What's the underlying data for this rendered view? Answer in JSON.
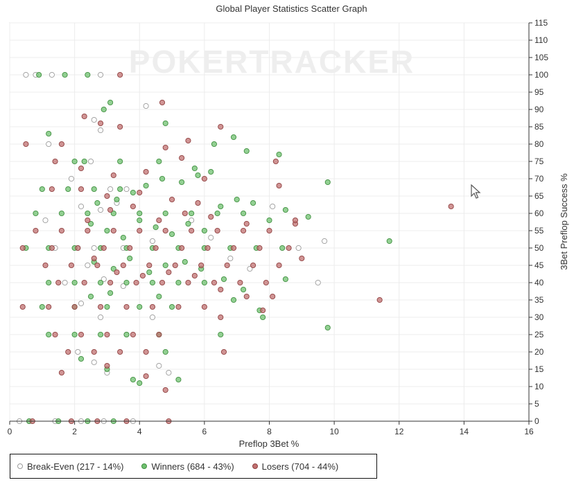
{
  "chart_data": {
    "type": "scatter",
    "title": "Global Player Statistics Scatter Graph",
    "xlabel": "Preflop 3Bet %",
    "ylabel": "3Bet Preflop Success %",
    "xlim": [
      0,
      16
    ],
    "ylim": [
      0,
      115
    ],
    "xticks": [
      "0",
      "2",
      "4",
      "6",
      "8",
      "10",
      "12",
      "14",
      "16"
    ],
    "yticks": [
      "0",
      "5",
      "10",
      "15",
      "20",
      "25",
      "30",
      "35",
      "40",
      "45",
      "50",
      "55",
      "60",
      "65",
      "70",
      "75",
      "80",
      "85",
      "90",
      "95",
      "100",
      "105",
      "110",
      "115"
    ],
    "grid": true,
    "legend_placement": "bottom-left",
    "series": [
      {
        "name": "Break-Even (217 - 14%)",
        "fill": "#ffffff",
        "stroke": "#9a9a9a",
        "points": [
          [
            0.5,
            100
          ],
          [
            0.8,
            100
          ],
          [
            1.3,
            100
          ],
          [
            2.8,
            100
          ],
          [
            1.2,
            80
          ],
          [
            2.6,
            87
          ],
          [
            2.8,
            84
          ],
          [
            4.2,
            91
          ],
          [
            1.9,
            70
          ],
          [
            2.5,
            75
          ],
          [
            3.1,
            67
          ],
          [
            3.6,
            67
          ],
          [
            1.1,
            58
          ],
          [
            2.2,
            62
          ],
          [
            2.8,
            61
          ],
          [
            3.3,
            63
          ],
          [
            1.4,
            50
          ],
          [
            2.1,
            50
          ],
          [
            2.6,
            50
          ],
          [
            3.5,
            50
          ],
          [
            4.4,
            52
          ],
          [
            5.6,
            58
          ],
          [
            6.2,
            53
          ],
          [
            6.8,
            47
          ],
          [
            7.4,
            44
          ],
          [
            8.1,
            62
          ],
          [
            8.9,
            50
          ],
          [
            9.5,
            40
          ],
          [
            9.7,
            52
          ],
          [
            2.4,
            45
          ],
          [
            2.9,
            41
          ],
          [
            3.5,
            39
          ],
          [
            1.7,
            40
          ],
          [
            2.2,
            34
          ],
          [
            2.8,
            30
          ],
          [
            3.6,
            25
          ],
          [
            2.1,
            20
          ],
          [
            2.6,
            17
          ],
          [
            3.0,
            14
          ],
          [
            4.4,
            30
          ],
          [
            4.6,
            16
          ],
          [
            4.9,
            14
          ],
          [
            0.6,
            0
          ],
          [
            1.4,
            0
          ],
          [
            2.2,
            0
          ],
          [
            2.9,
            0
          ],
          [
            3.8,
            0
          ],
          [
            0.3,
            0
          ]
        ]
      },
      {
        "name": "Winners (684 - 43%)",
        "fill": "#6fc06f",
        "stroke": "#3f8f3f",
        "points": [
          [
            0.9,
            100
          ],
          [
            1.7,
            100
          ],
          [
            2.4,
            100
          ],
          [
            3.1,
            92
          ],
          [
            2.9,
            90
          ],
          [
            4.8,
            86
          ],
          [
            6.3,
            80
          ],
          [
            6.9,
            82
          ],
          [
            7.3,
            78
          ],
          [
            8.3,
            77
          ],
          [
            9.8,
            69
          ],
          [
            11.7,
            52
          ],
          [
            9.8,
            27
          ],
          [
            7.8,
            30
          ],
          [
            6.5,
            25
          ],
          [
            4.0,
            11
          ],
          [
            5.2,
            12
          ],
          [
            4.8,
            20
          ],
          [
            1.2,
            83
          ],
          [
            2.0,
            75
          ],
          [
            2.3,
            75
          ],
          [
            3.4,
            75
          ],
          [
            4.6,
            75
          ],
          [
            5.7,
            73
          ],
          [
            1.0,
            67
          ],
          [
            1.8,
            67
          ],
          [
            2.6,
            67
          ],
          [
            3.4,
            67
          ],
          [
            0.8,
            60
          ],
          [
            1.6,
            60
          ],
          [
            2.4,
            60
          ],
          [
            3.2,
            60
          ],
          [
            4.0,
            60
          ],
          [
            4.8,
            60
          ],
          [
            5.6,
            60
          ],
          [
            6.4,
            60
          ],
          [
            7.2,
            60
          ],
          [
            0.5,
            50
          ],
          [
            1.2,
            50
          ],
          [
            2.0,
            50
          ],
          [
            2.8,
            50
          ],
          [
            3.6,
            50
          ],
          [
            4.4,
            50
          ],
          [
            5.2,
            50
          ],
          [
            6.0,
            50
          ],
          [
            6.8,
            50
          ],
          [
            7.6,
            50
          ],
          [
            8.4,
            50
          ],
          [
            1.2,
            40
          ],
          [
            2.0,
            40
          ],
          [
            2.8,
            40
          ],
          [
            3.6,
            40
          ],
          [
            4.4,
            40
          ],
          [
            5.2,
            40
          ],
          [
            6.0,
            40
          ],
          [
            1.0,
            33
          ],
          [
            2.0,
            33
          ],
          [
            3.0,
            33
          ],
          [
            4.0,
            33
          ],
          [
            5.0,
            33
          ],
          [
            1.2,
            25
          ],
          [
            2.0,
            25
          ],
          [
            2.8,
            25
          ],
          [
            3.6,
            25
          ],
          [
            4.6,
            25
          ],
          [
            2.2,
            18
          ],
          [
            3.0,
            15
          ],
          [
            3.8,
            12
          ],
          [
            0.6,
            0
          ],
          [
            1.5,
            0
          ],
          [
            2.4,
            0
          ],
          [
            3.2,
            0
          ],
          [
            2.5,
            57
          ],
          [
            3.0,
            55
          ],
          [
            3.5,
            53
          ],
          [
            4.0,
            58
          ],
          [
            4.5,
            56
          ],
          [
            5.0,
            54
          ],
          [
            5.5,
            57
          ],
          [
            6.0,
            55
          ],
          [
            6.5,
            62
          ],
          [
            7.0,
            64
          ],
          [
            7.5,
            63
          ],
          [
            8.0,
            58
          ],
          [
            8.5,
            61
          ],
          [
            9.2,
            59
          ],
          [
            2.7,
            63
          ],
          [
            3.3,
            64
          ],
          [
            3.8,
            66
          ],
          [
            4.2,
            68
          ],
          [
            4.7,
            70
          ],
          [
            5.3,
            69
          ],
          [
            5.8,
            71
          ],
          [
            6.2,
            72
          ],
          [
            2.6,
            46
          ],
          [
            3.2,
            44
          ],
          [
            3.7,
            47
          ],
          [
            4.3,
            43
          ],
          [
            4.8,
            45
          ],
          [
            5.4,
            46
          ],
          [
            5.9,
            44
          ],
          [
            6.6,
            41
          ],
          [
            7.2,
            38
          ],
          [
            8.5,
            41
          ],
          [
            2.5,
            36
          ],
          [
            3.1,
            37
          ],
          [
            4.6,
            36
          ],
          [
            6.9,
            35
          ],
          [
            7.7,
            32
          ]
        ]
      },
      {
        "name": "Losers (704 - 44%)",
        "fill": "#c07070",
        "stroke": "#8f3f3f",
        "points": [
          [
            3.4,
            100
          ],
          [
            4.7,
            92
          ],
          [
            2.3,
            88
          ],
          [
            2.8,
            86
          ],
          [
            3.4,
            85
          ],
          [
            6.5,
            85
          ],
          [
            0.5,
            80
          ],
          [
            1.6,
            80
          ],
          [
            4.8,
            79
          ],
          [
            5.5,
            81
          ],
          [
            8.2,
            75
          ],
          [
            8.3,
            68
          ],
          [
            13.6,
            62
          ],
          [
            11.4,
            35
          ],
          [
            8.1,
            36
          ],
          [
            7.8,
            32
          ],
          [
            6.5,
            30
          ],
          [
            6.6,
            20
          ],
          [
            4.8,
            9
          ],
          [
            4.2,
            13
          ],
          [
            3.0,
            16
          ],
          [
            1.6,
            14
          ],
          [
            1.4,
            75
          ],
          [
            2.2,
            73
          ],
          [
            3.2,
            71
          ],
          [
            4.2,
            72
          ],
          [
            5.3,
            76
          ],
          [
            6.0,
            70
          ],
          [
            1.3,
            67
          ],
          [
            2.2,
            67
          ],
          [
            3.0,
            65
          ],
          [
            4.0,
            66
          ],
          [
            5.0,
            64
          ],
          [
            5.8,
            63
          ],
          [
            0.8,
            55
          ],
          [
            1.6,
            55
          ],
          [
            2.4,
            55
          ],
          [
            3.2,
            55
          ],
          [
            4.0,
            55
          ],
          [
            4.8,
            55
          ],
          [
            5.6,
            55
          ],
          [
            6.4,
            55
          ],
          [
            7.2,
            55
          ],
          [
            8.0,
            55
          ],
          [
            8.8,
            57
          ],
          [
            0.4,
            50
          ],
          [
            1.3,
            50
          ],
          [
            2.1,
            50
          ],
          [
            2.9,
            50
          ],
          [
            3.7,
            50
          ],
          [
            4.5,
            50
          ],
          [
            5.3,
            50
          ],
          [
            6.1,
            50
          ],
          [
            6.9,
            50
          ],
          [
            7.7,
            50
          ],
          [
            8.6,
            50
          ],
          [
            1.1,
            45
          ],
          [
            1.9,
            45
          ],
          [
            2.7,
            45
          ],
          [
            3.5,
            45
          ],
          [
            4.3,
            45
          ],
          [
            5.1,
            45
          ],
          [
            5.9,
            45
          ],
          [
            6.7,
            45
          ],
          [
            7.5,
            45
          ],
          [
            8.3,
            45
          ],
          [
            9.0,
            47
          ],
          [
            0.4,
            33
          ],
          [
            1.2,
            33
          ],
          [
            2.0,
            33
          ],
          [
            2.8,
            33
          ],
          [
            3.6,
            33
          ],
          [
            4.4,
            33
          ],
          [
            5.2,
            33
          ],
          [
            6.0,
            33
          ],
          [
            1.4,
            25
          ],
          [
            2.2,
            25
          ],
          [
            3.0,
            25
          ],
          [
            3.8,
            25
          ],
          [
            4.6,
            25
          ],
          [
            1.8,
            20
          ],
          [
            2.6,
            20
          ],
          [
            3.4,
            20
          ],
          [
            4.2,
            20
          ],
          [
            1.5,
            40
          ],
          [
            2.3,
            40
          ],
          [
            3.1,
            40
          ],
          [
            3.9,
            40
          ],
          [
            4.7,
            40
          ],
          [
            5.5,
            40
          ],
          [
            6.3,
            40
          ],
          [
            7.1,
            40
          ],
          [
            7.9,
            40
          ],
          [
            0.7,
            0
          ],
          [
            1.9,
            0
          ],
          [
            2.7,
            0
          ],
          [
            3.6,
            0
          ],
          [
            4.9,
            0
          ],
          [
            2.4,
            58
          ],
          [
            3.1,
            61
          ],
          [
            3.8,
            62
          ],
          [
            4.6,
            58
          ],
          [
            5.4,
            60
          ],
          [
            6.2,
            59
          ],
          [
            7.3,
            57
          ],
          [
            8.8,
            58
          ],
          [
            2.6,
            47
          ],
          [
            3.3,
            43
          ],
          [
            4.1,
            42
          ],
          [
            4.9,
            43
          ],
          [
            5.7,
            42
          ],
          [
            6.5,
            38
          ],
          [
            7.3,
            36
          ]
        ]
      }
    ]
  },
  "watermark": "POKERTRACKER"
}
